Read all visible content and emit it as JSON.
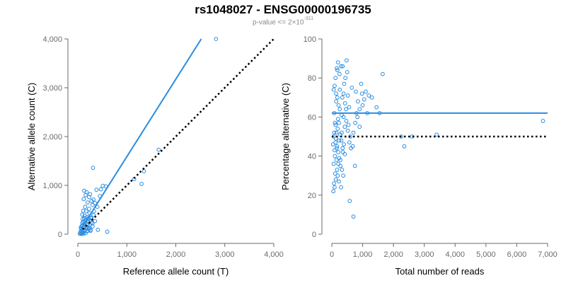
{
  "title": "rs1048027 - ENSG00000196735",
  "subtitle": {
    "prefix": "p-value <= 2×10",
    "exponent": "-311"
  },
  "colors": {
    "points": "#2b8ce0",
    "fit": "#2b8ce0",
    "reference": "#000000",
    "axis": "#6b6b6b"
  },
  "chart_data": [
    {
      "type": "scatter",
      "xlabel": "Reference allele count (T)",
      "ylabel": "Alternative allele count (C)",
      "xlim": [
        0,
        4000
      ],
      "ylim": [
        0,
        4000
      ],
      "xticks": [
        0,
        1000,
        2000,
        3000,
        4000
      ],
      "yticks": [
        0,
        1000,
        2000,
        3000,
        4000
      ],
      "xtick_labels": [
        "0",
        "1,000",
        "2,000",
        "3,000",
        "4,000"
      ],
      "ytick_labels": [
        "0",
        "1,000",
        "2,000",
        "3,000",
        "4,000"
      ],
      "grid": false,
      "fit_line": {
        "x": [
          50,
          2520
        ],
        "y": [
          80,
          4000
        ]
      },
      "reference_line": {
        "x": [
          100,
          4000
        ],
        "y": [
          100,
          4000
        ]
      },
      "points": [
        [
          2820,
          4000
        ],
        [
          1650,
          1730
        ],
        [
          1300,
          1030
        ],
        [
          1350,
          1290
        ],
        [
          1150,
          1130
        ],
        [
          310,
          1360
        ],
        [
          380,
          910
        ],
        [
          470,
          920
        ],
        [
          510,
          990
        ],
        [
          570,
          980
        ],
        [
          450,
          780
        ],
        [
          600,
          50
        ],
        [
          200,
          70
        ],
        [
          410,
          90
        ],
        [
          260,
          70
        ],
        [
          130,
          890
        ],
        [
          180,
          860
        ],
        [
          250,
          820
        ],
        [
          320,
          710
        ],
        [
          160,
          800
        ],
        [
          230,
          760
        ],
        [
          280,
          680
        ],
        [
          350,
          640
        ],
        [
          120,
          720
        ],
        [
          300,
          600
        ],
        [
          200,
          650
        ],
        [
          150,
          560
        ],
        [
          230,
          520
        ],
        [
          400,
          560
        ],
        [
          110,
          480
        ],
        [
          170,
          470
        ],
        [
          240,
          430
        ],
        [
          330,
          470
        ],
        [
          90,
          400
        ],
        [
          140,
          380
        ],
        [
          190,
          350
        ],
        [
          260,
          330
        ],
        [
          320,
          390
        ],
        [
          100,
          310
        ],
        [
          160,
          290
        ],
        [
          210,
          260
        ],
        [
          280,
          240
        ],
        [
          90,
          230
        ],
        [
          130,
          200
        ],
        [
          180,
          210
        ],
        [
          240,
          180
        ],
        [
          300,
          160
        ],
        [
          80,
          160
        ],
        [
          120,
          130
        ],
        [
          170,
          120
        ],
        [
          220,
          100
        ],
        [
          260,
          90
        ],
        [
          70,
          110
        ],
        [
          100,
          80
        ],
        [
          140,
          70
        ],
        [
          190,
          60
        ],
        [
          60,
          60
        ],
        [
          90,
          40
        ],
        [
          120,
          30
        ],
        [
          160,
          20
        ],
        [
          50,
          30
        ],
        [
          80,
          20
        ],
        [
          110,
          10
        ],
        [
          70,
          5
        ],
        [
          40,
          10
        ],
        [
          200,
          300
        ],
        [
          260,
          280
        ],
        [
          150,
          240
        ],
        [
          220,
          330
        ],
        [
          130,
          330
        ],
        [
          300,
          220
        ],
        [
          350,
          270
        ],
        [
          110,
          260
        ],
        [
          180,
          150
        ],
        [
          240,
          130
        ],
        [
          90,
          180
        ],
        [
          140,
          150
        ],
        [
          60,
          140
        ],
        [
          200,
          190
        ],
        [
          280,
          340
        ]
      ]
    },
    {
      "type": "scatter",
      "xlabel": "Total number of reads",
      "ylabel": "Percentage alternative (C)",
      "xlim": [
        0,
        7000
      ],
      "ylim": [
        0,
        100
      ],
      "xticks": [
        0,
        1000,
        2000,
        3000,
        4000,
        5000,
        6000,
        7000
      ],
      "yticks": [
        0,
        20,
        40,
        60,
        80,
        100
      ],
      "xtick_labels": [
        "0",
        "1,000",
        "2,000",
        "3,000",
        "4,000",
        "5,000",
        "6,000",
        "7,000"
      ],
      "ytick_labels": [
        "0",
        "20",
        "40",
        "60",
        "80",
        "100"
      ],
      "grid": false,
      "mean_line": {
        "x": [
          0,
          7000
        ],
        "y": [
          62,
          62
        ]
      },
      "reference_line": {
        "x": [
          0,
          7000
        ],
        "y": [
          50,
          50
        ]
      },
      "points": [
        [
          6850,
          58
        ],
        [
          3400,
          51
        ],
        [
          2350,
          45
        ],
        [
          2250,
          50
        ],
        [
          2600,
          50
        ],
        [
          1650,
          82
        ],
        [
          1550,
          62
        ],
        [
          1450,
          65
        ],
        [
          1300,
          70
        ],
        [
          1200,
          71
        ],
        [
          1100,
          73
        ],
        [
          1000,
          66
        ],
        [
          950,
          77
        ],
        [
          900,
          55
        ],
        [
          850,
          68
        ],
        [
          800,
          62
        ],
        [
          780,
          73
        ],
        [
          750,
          35
        ],
        [
          700,
          9
        ],
        [
          680,
          45
        ],
        [
          650,
          75
        ],
        [
          600,
          50
        ],
        [
          580,
          17
        ],
        [
          560,
          65
        ],
        [
          540,
          56
        ],
        [
          520,
          71
        ],
        [
          500,
          83
        ],
        [
          480,
          89
        ],
        [
          460,
          64
        ],
        [
          440,
          80
        ],
        [
          420,
          55
        ],
        [
          400,
          77
        ],
        [
          380,
          60
        ],
        [
          360,
          42
        ],
        [
          340,
          70
        ],
        [
          320,
          52
        ],
        [
          300,
          86
        ],
        [
          280,
          38
        ],
        [
          260,
          74
        ],
        [
          240,
          48
        ],
        [
          220,
          66
        ],
        [
          200,
          59
        ],
        [
          180,
          84
        ],
        [
          160,
          44
        ],
        [
          140,
          72
        ],
        [
          120,
          56
        ],
        [
          100,
          40
        ],
        [
          80,
          62
        ],
        [
          60,
          50
        ],
        [
          40,
          46
        ],
        [
          50,
          22
        ],
        [
          90,
          24
        ],
        [
          130,
          28
        ],
        [
          170,
          33
        ],
        [
          210,
          36
        ],
        [
          110,
          31
        ],
        [
          70,
          26
        ],
        [
          150,
          38
        ],
        [
          190,
          30
        ],
        [
          230,
          27
        ],
        [
          300,
          24
        ],
        [
          120,
          80
        ],
        [
          160,
          85
        ],
        [
          200,
          88
        ],
        [
          250,
          82
        ],
        [
          350,
          86
        ],
        [
          90,
          76
        ],
        [
          140,
          68
        ],
        [
          60,
          74
        ],
        [
          180,
          70
        ],
        [
          260,
          64
        ],
        [
          320,
          61
        ],
        [
          380,
          72
        ],
        [
          430,
          67
        ],
        [
          470,
          58
        ],
        [
          520,
          53
        ],
        [
          570,
          47
        ],
        [
          620,
          44
        ],
        [
          700,
          52
        ],
        [
          760,
          57
        ],
        [
          830,
          60
        ],
        [
          900,
          64
        ],
        [
          980,
          72
        ],
        [
          1050,
          69
        ],
        [
          1150,
          62
        ],
        [
          80,
          52
        ],
        [
          100,
          57
        ],
        [
          130,
          49
        ],
        [
          170,
          45
        ],
        [
          210,
          42
        ],
        [
          240,
          39
        ],
        [
          280,
          35
        ],
        [
          330,
          33
        ],
        [
          370,
          30
        ],
        [
          420,
          41
        ],
        [
          60,
          36
        ],
        [
          90,
          43
        ],
        [
          120,
          47
        ],
        [
          150,
          52
        ],
        [
          190,
          54
        ],
        [
          230,
          57
        ],
        [
          270,
          51
        ],
        [
          310,
          48
        ],
        [
          350,
          44
        ],
        [
          390,
          46
        ]
      ]
    }
  ]
}
